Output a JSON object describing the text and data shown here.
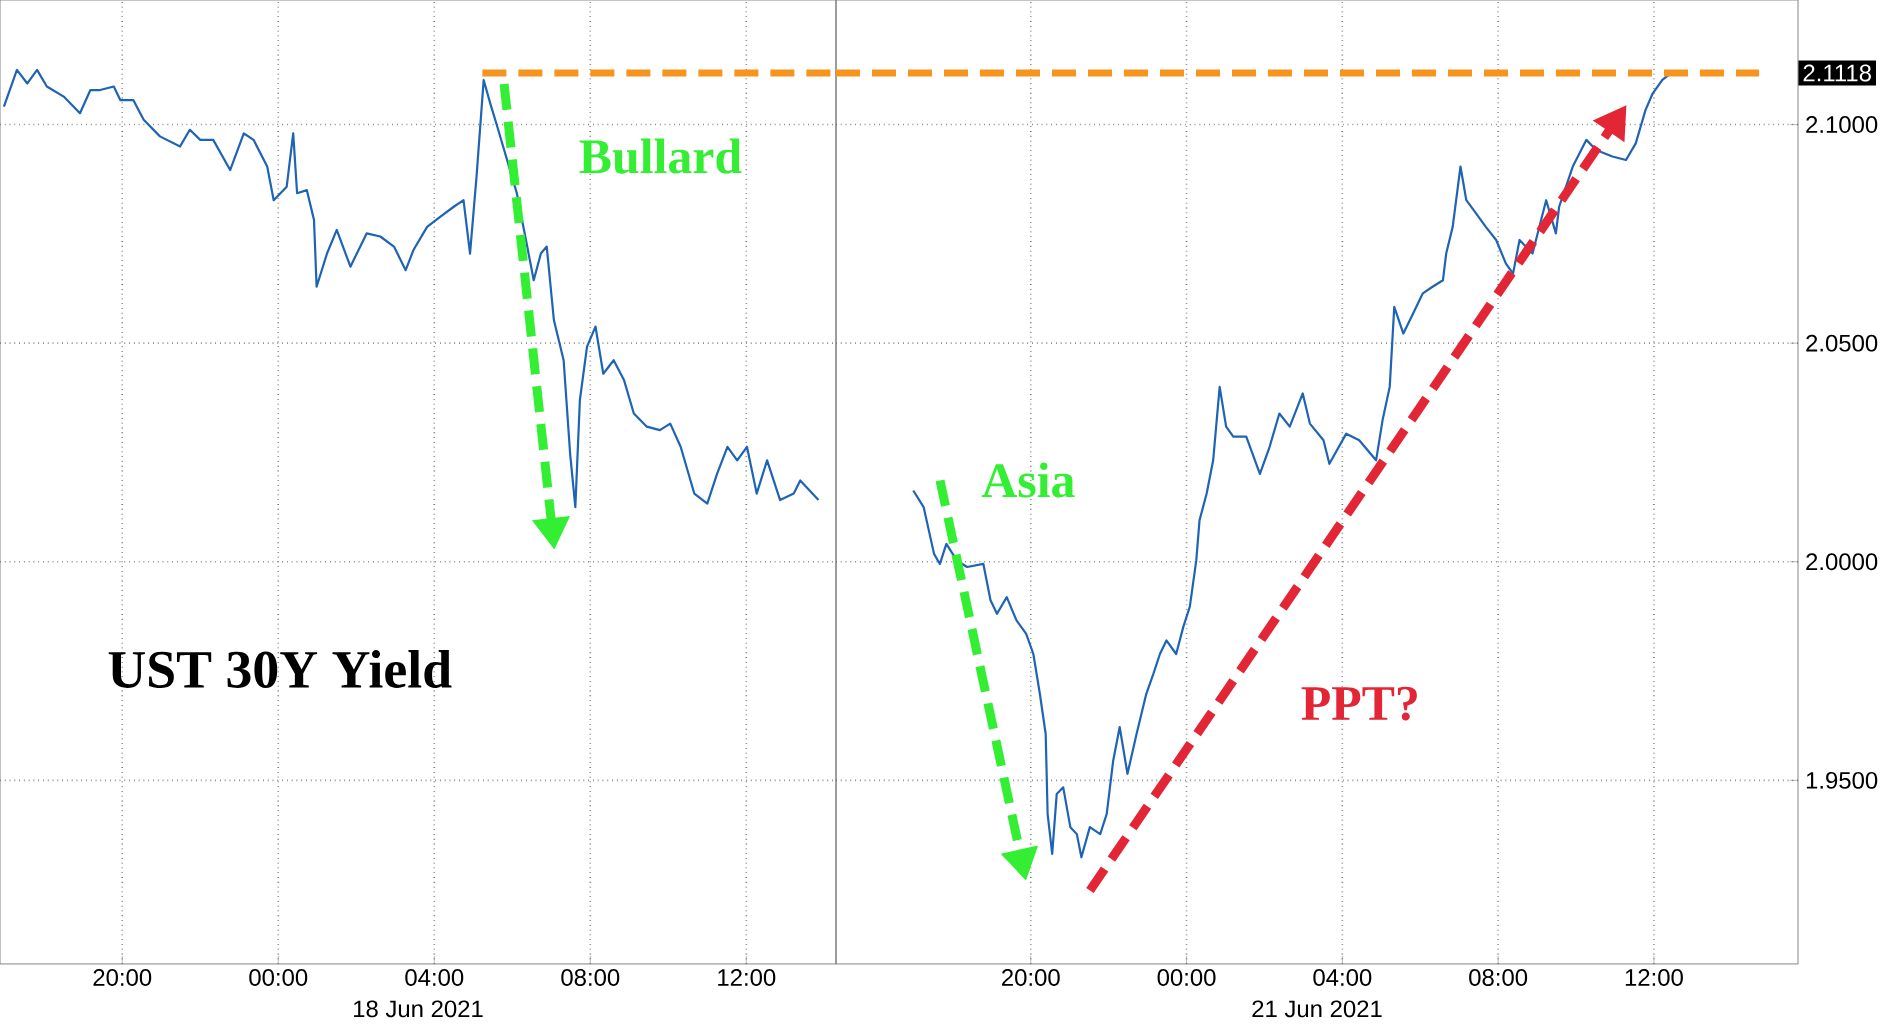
{
  "chart_data": [
    {
      "type": "line",
      "title": "UST 30Y Yield",
      "xlim": [
        "2021-06-17T16:52",
        "2021-06-18T14:18"
      ],
      "ylim": [
        1.908,
        2.1285
      ],
      "xticks": [
        {
          "value": "2021-06-17T20:00",
          "label": "20:00"
        },
        {
          "value": "2021-06-18T00:00",
          "label": "00:00"
        },
        {
          "value": "2021-06-18T04:00",
          "label": "04:00"
        },
        {
          "value": "2021-06-18T08:00",
          "label": "08:00"
        },
        {
          "value": "2021-06-18T12:00",
          "label": "12:00"
        }
      ],
      "yticks": [
        {
          "value": 1.95,
          "label": null
        },
        {
          "value": 2.0,
          "label": null
        },
        {
          "value": 2.05,
          "label": null
        },
        {
          "value": 2.1,
          "label": null
        }
      ],
      "tick_labels": "x",
      "grid": true,
      "series": [
        {
          "color": "#1f64b4",
          "x": [
            "2021-06-17T16:58",
            "2021-06-17T17:18",
            "2021-06-17T17:34",
            "2021-06-17T17:49",
            "2021-06-17T18:04",
            "2021-06-17T18:30",
            "2021-06-17T18:55",
            "2021-06-17T19:11",
            "2021-06-17T19:26",
            "2021-06-17T19:47",
            "2021-06-17T19:57",
            "2021-06-17T20:17",
            "2021-06-17T20:33",
            "2021-06-17T20:58",
            "2021-06-17T21:29",
            "2021-06-17T21:44",
            "2021-06-17T22:00",
            "2021-06-17T22:20",
            "2021-06-17T22:46",
            "2021-06-17T23:07",
            "2021-06-17T23:22",
            "2021-06-17T23:43",
            "2021-06-17T23:53",
            "2021-06-18T00:13",
            "2021-06-18T00:23",
            "2021-06-18T00:29",
            "2021-06-18T00:44",
            "2021-06-18T00:55",
            "2021-06-18T00:59",
            "2021-06-18T01:15",
            "2021-06-18T01:30",
            "2021-06-18T01:51",
            "2021-06-18T02:16",
            "2021-06-18T02:37",
            "2021-06-18T02:58",
            "2021-06-18T03:16",
            "2021-06-18T03:28",
            "2021-06-18T03:49",
            "2021-06-18T04:09",
            "2021-06-18T04:30",
            "2021-06-18T04:45",
            "2021-06-18T04:55",
            "2021-06-18T05:05",
            "2021-06-18T05:16",
            "2021-06-18T05:26",
            "2021-06-18T05:37",
            "2021-06-18T05:52",
            "2021-06-18T06:07",
            "2021-06-18T06:23",
            "2021-06-18T06:33",
            "2021-06-18T06:44",
            "2021-06-18T06:53",
            "2021-06-18T07:04",
            "2021-06-18T07:19",
            "2021-06-18T07:29",
            "2021-06-18T07:37",
            "2021-06-18T07:44",
            "2021-06-18T07:55",
            "2021-06-18T08:08",
            "2021-06-18T08:20",
            "2021-06-18T08:36",
            "2021-06-18T08:52",
            "2021-06-18T09:07",
            "2021-06-18T09:27",
            "2021-06-18T09:47",
            "2021-06-18T10:03",
            "2021-06-18T10:19",
            "2021-06-18T10:40",
            "2021-06-18T11:00",
            "2021-06-18T11:15",
            "2021-06-18T11:31",
            "2021-06-18T11:46",
            "2021-06-18T12:01",
            "2021-06-18T12:16",
            "2021-06-18T12:32",
            "2021-06-18T12:52",
            "2021-06-18T13:13",
            "2021-06-18T13:23",
            "2021-06-18T13:51"
          ],
          "values": [
            2.1041,
            2.1125,
            2.1094,
            2.1125,
            2.1087,
            2.1064,
            2.1026,
            2.1079,
            2.1079,
            2.1087,
            2.1056,
            2.1056,
            2.1011,
            2.0973,
            2.095,
            2.0988,
            2.0965,
            2.0965,
            2.0896,
            2.098,
            2.0965,
            2.0904,
            2.0827,
            2.0858,
            2.098,
            2.0843,
            2.085,
            2.0782,
            2.0629,
            2.0705,
            2.0759,
            2.0675,
            2.0751,
            2.0744,
            2.0721,
            2.0667,
            2.0713,
            2.0766,
            2.0789,
            2.0812,
            2.0827,
            2.0705,
            2.0881,
            2.1102,
            2.1049,
            2.0995,
            2.0919,
            2.0843,
            2.0721,
            2.0644,
            2.0705,
            2.0721,
            2.0553,
            2.0461,
            2.0247,
            2.0125,
            2.037,
            2.0492,
            2.0538,
            2.043,
            2.0461,
            2.0415,
            2.0339,
            2.0309,
            2.0301,
            2.0316,
            2.0263,
            2.0156,
            2.0133,
            2.0201,
            2.0263,
            2.0232,
            2.0263,
            2.0156,
            2.0232,
            2.0141,
            2.0156,
            2.0186,
            2.0141
          ]
        },
        {
          "color": "#f7941d",
          "line_style": "dashed",
          "x": [
            "2021-06-18T05:14",
            "2021-06-18T14:18"
          ],
          "values": [
            2.1118,
            2.1118
          ]
        }
      ],
      "annotations": [
        "18 Jun 2021",
        "Bullard"
      ]
    },
    {
      "type": "line",
      "xlim": [
        "2021-06-20T15:00",
        "2021-06-21T15:42"
      ],
      "ylim": [
        1.908,
        2.1285
      ],
      "xticks": [
        {
          "value": "2021-06-20T20:00",
          "label": "20:00"
        },
        {
          "value": "2021-06-21T00:00",
          "label": "00:00"
        },
        {
          "value": "2021-06-21T04:00",
          "label": "04:00"
        },
        {
          "value": "2021-06-21T08:00",
          "label": "08:00"
        },
        {
          "value": "2021-06-21T12:00",
          "label": "12:00"
        }
      ],
      "yticks": [
        {
          "value": 1.95,
          "label": "1.9500"
        },
        {
          "value": 2.0,
          "label": "2.0000"
        },
        {
          "value": 2.05,
          "label": "2.0500"
        },
        {
          "value": 2.1,
          "label": "2.1000"
        }
      ],
      "grid": true,
      "series": [
        {
          "color": "#1f64b4",
          "x": [
            "2021-06-20T16:59",
            "2021-06-20T17:15",
            "2021-06-20T17:31",
            "2021-06-20T17:40",
            "2021-06-20T17:50",
            "2021-06-20T18:06",
            "2021-06-20T18:22",
            "2021-06-20T18:47",
            "2021-06-20T18:58",
            "2021-06-20T19:08",
            "2021-06-20T19:23",
            "2021-06-20T19:38",
            "2021-06-20T19:53",
            "2021-06-20T20:04",
            "2021-06-20T20:14",
            "2021-06-20T20:23",
            "2021-06-20T20:26",
            "2021-06-20T20:33",
            "2021-06-20T20:40",
            "2021-06-20T20:50",
            "2021-06-20T21:01",
            "2021-06-20T21:11",
            "2021-06-20T21:18",
            "2021-06-20T21:31",
            "2021-06-20T21:47",
            "2021-06-20T21:57",
            "2021-06-20T22:07",
            "2021-06-20T22:17",
            "2021-06-20T22:29",
            "2021-06-20T22:43",
            "2021-06-20T22:58",
            "2021-06-20T23:09",
            "2021-06-20T23:19",
            "2021-06-20T23:29",
            "2021-06-20T23:44",
            "2021-06-20T23:55",
            "2021-06-21T00:05",
            "2021-06-21T00:15",
            "2021-06-21T00:20",
            "2021-06-21T00:31",
            "2021-06-21T00:41",
            "2021-06-21T00:51",
            "2021-06-21T01:01",
            "2021-06-21T01:12",
            "2021-06-21T01:32",
            "2021-06-21T01:53",
            "2021-06-21T02:08",
            "2021-06-21T02:23",
            "2021-06-21T02:39",
            "2021-06-21T02:59",
            "2021-06-21T03:10",
            "2021-06-21T03:31",
            "2021-06-21T03:40",
            "2021-06-21T04:06",
            "2021-06-21T04:26",
            "2021-06-21T04:52",
            "2021-06-21T05:02",
            "2021-06-21T05:13",
            "2021-06-21T05:20",
            "2021-06-21T05:34",
            "2021-06-21T05:49",
            "2021-06-21T06:04",
            "2021-06-21T06:19",
            "2021-06-21T06:35",
            "2021-06-21T06:40",
            "2021-06-21T06:50",
            "2021-06-21T07:02",
            "2021-06-21T07:11",
            "2021-06-21T07:26",
            "2021-06-21T07:41",
            "2021-06-21T07:57",
            "2021-06-21T08:12",
            "2021-06-21T08:23",
            "2021-06-21T08:33",
            "2021-06-21T08:53",
            "2021-06-21T09:14",
            "2021-06-21T09:29",
            "2021-06-21T09:34",
            "2021-06-21T09:55",
            "2021-06-21T10:16",
            "2021-06-21T10:31",
            "2021-06-21T10:56",
            "2021-06-21T11:17",
            "2021-06-21T11:32",
            "2021-06-21T11:47",
            "2021-06-21T11:58",
            "2021-06-21T12:13",
            "2021-06-21T12:26"
          ],
          "values": [
            2.0163,
            2.0125,
            2.0018,
            1.9995,
            2.0041,
            2.0003,
            1.9988,
            1.9995,
            1.9912,
            1.9881,
            1.9919,
            1.9866,
            1.9835,
            1.9789,
            1.9698,
            1.9606,
            1.9423,
            1.9332,
            1.9469,
            1.9484,
            1.9393,
            1.9377,
            1.9324,
            1.9393,
            1.9377,
            1.9423,
            1.9545,
            1.9622,
            1.9515,
            1.9606,
            1.9698,
            1.9744,
            1.9789,
            1.982,
            1.9789,
            1.9851,
            1.9897,
            2.0003,
            2.0095,
            2.0156,
            2.0232,
            2.04,
            2.0309,
            2.0286,
            2.0286,
            2.0201,
            2.0263,
            2.0339,
            2.0309,
            2.0385,
            2.0316,
            2.0278,
            2.0224,
            2.0293,
            2.0278,
            2.0232,
            2.0324,
            2.04,
            2.0583,
            2.0522,
            2.0568,
            2.0614,
            2.0629,
            2.0644,
            2.0705,
            2.0766,
            2.0904,
            2.0827,
            2.0797,
            2.0766,
            2.0736,
            2.0682,
            2.0659,
            2.0736,
            2.0705,
            2.0827,
            2.0751,
            2.0812,
            2.0904,
            2.0965,
            2.0942,
            2.0927,
            2.0919,
            2.0957,
            2.1033,
            2.1071,
            2.1102,
            2.1117
          ]
        },
        {
          "color": "#f7941d",
          "line_style": "dashed",
          "x": [
            "2021-06-20T15:00",
            "2021-06-21T14:42"
          ],
          "values": [
            2.1118,
            2.1118
          ]
        }
      ],
      "annotations": [
        "21 Jun 2021",
        "Asia",
        "PPT?",
        {
          "text": "2.1118",
          "y": 2.1118
        }
      ]
    }
  ]
}
